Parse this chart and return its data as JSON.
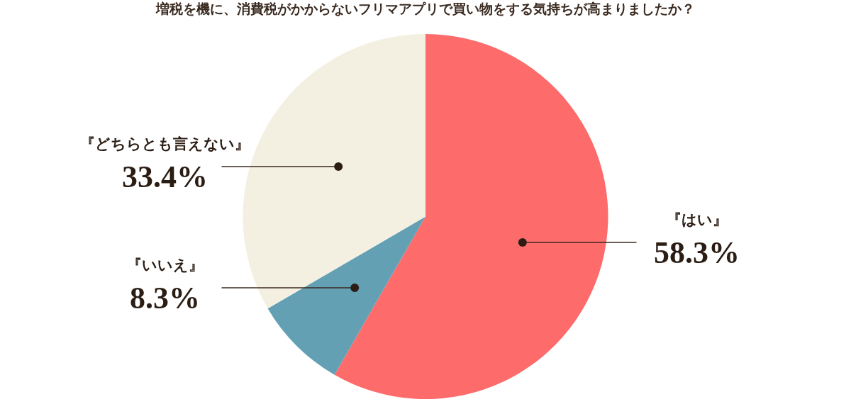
{
  "chart_data": {
    "type": "pie",
    "title": "増税を機に、消費税がかからないフリマアプリで買い物をする気持ちが高まりましたか？",
    "categories": [
      "『はい』",
      "『いいえ』",
      "『どちらとも言えない』"
    ],
    "values": [
      58.3,
      8.3,
      33.4
    ],
    "colors": [
      "#fd6b6b",
      "#64a0b4",
      "#f3efe1"
    ],
    "value_labels": [
      "58.3%",
      "8.3%",
      "33.4%"
    ],
    "legend": false
  }
}
